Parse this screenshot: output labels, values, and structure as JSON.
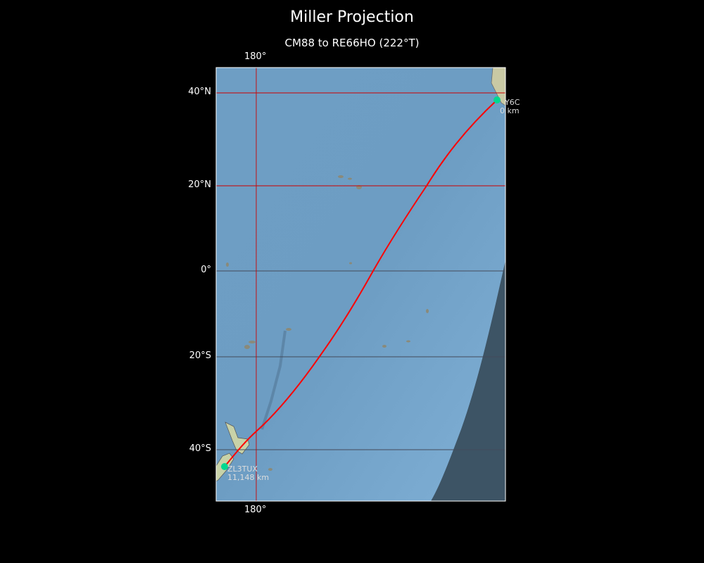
{
  "title": "Miller Projection",
  "subtitle": "CM88 to RE66HO (222°T)",
  "axes": {
    "top_lon": "180°",
    "bottom_lon": "180°",
    "lat_labels": [
      "40°N",
      "20°N",
      "0°",
      "20°S",
      "40°S"
    ]
  },
  "stations": {
    "start": {
      "call": "Y6C",
      "distance": "0 km"
    },
    "end": {
      "call": "ZL3TUX",
      "distance": "11,148 km"
    }
  },
  "colors": {
    "path": "#ff0000",
    "marker": "#00d890",
    "ocean": "#7aa8cc",
    "night": "#3a4f5f",
    "graticule_highlight": "#cc0000"
  }
}
